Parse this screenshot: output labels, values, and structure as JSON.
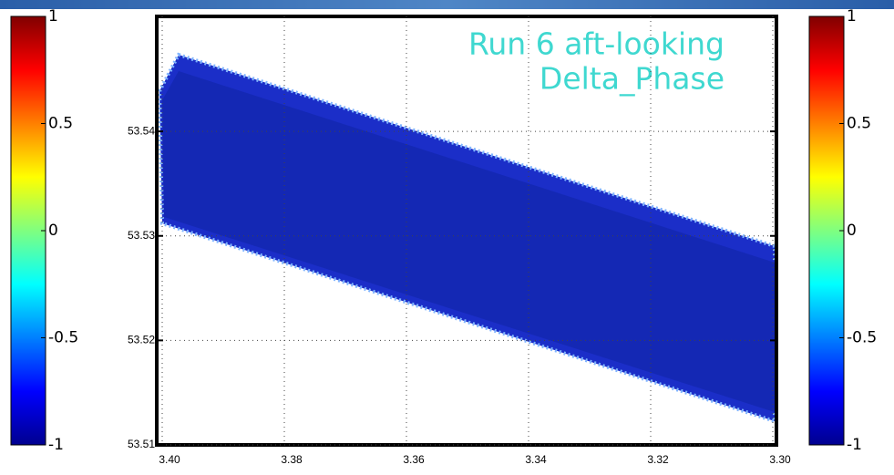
{
  "chart_data": {
    "type": "map",
    "title": [
      "Run 6 aft-looking",
      "Delta_Phase"
    ],
    "xlim": [
      3.4,
      3.3
    ],
    "xticks": [
      {
        "value": 3.4,
        "label": "3.40"
      },
      {
        "value": 3.38,
        "label": "3.38"
      },
      {
        "value": 3.36,
        "label": "3.36"
      },
      {
        "value": 3.34,
        "label": "3.34"
      },
      {
        "value": 3.32,
        "label": "3.32"
      },
      {
        "value": 3.3,
        "label": "3.30"
      }
    ],
    "ylim": [
      53.51,
      53.551
    ],
    "yticks": [
      53.51,
      53.52,
      53.53,
      53.54
    ],
    "grid": true,
    "colorbar": {
      "clim": [
        -1,
        1
      ],
      "ticks": [
        1,
        0.5,
        0,
        -0.5,
        -1
      ]
    }
  }
}
